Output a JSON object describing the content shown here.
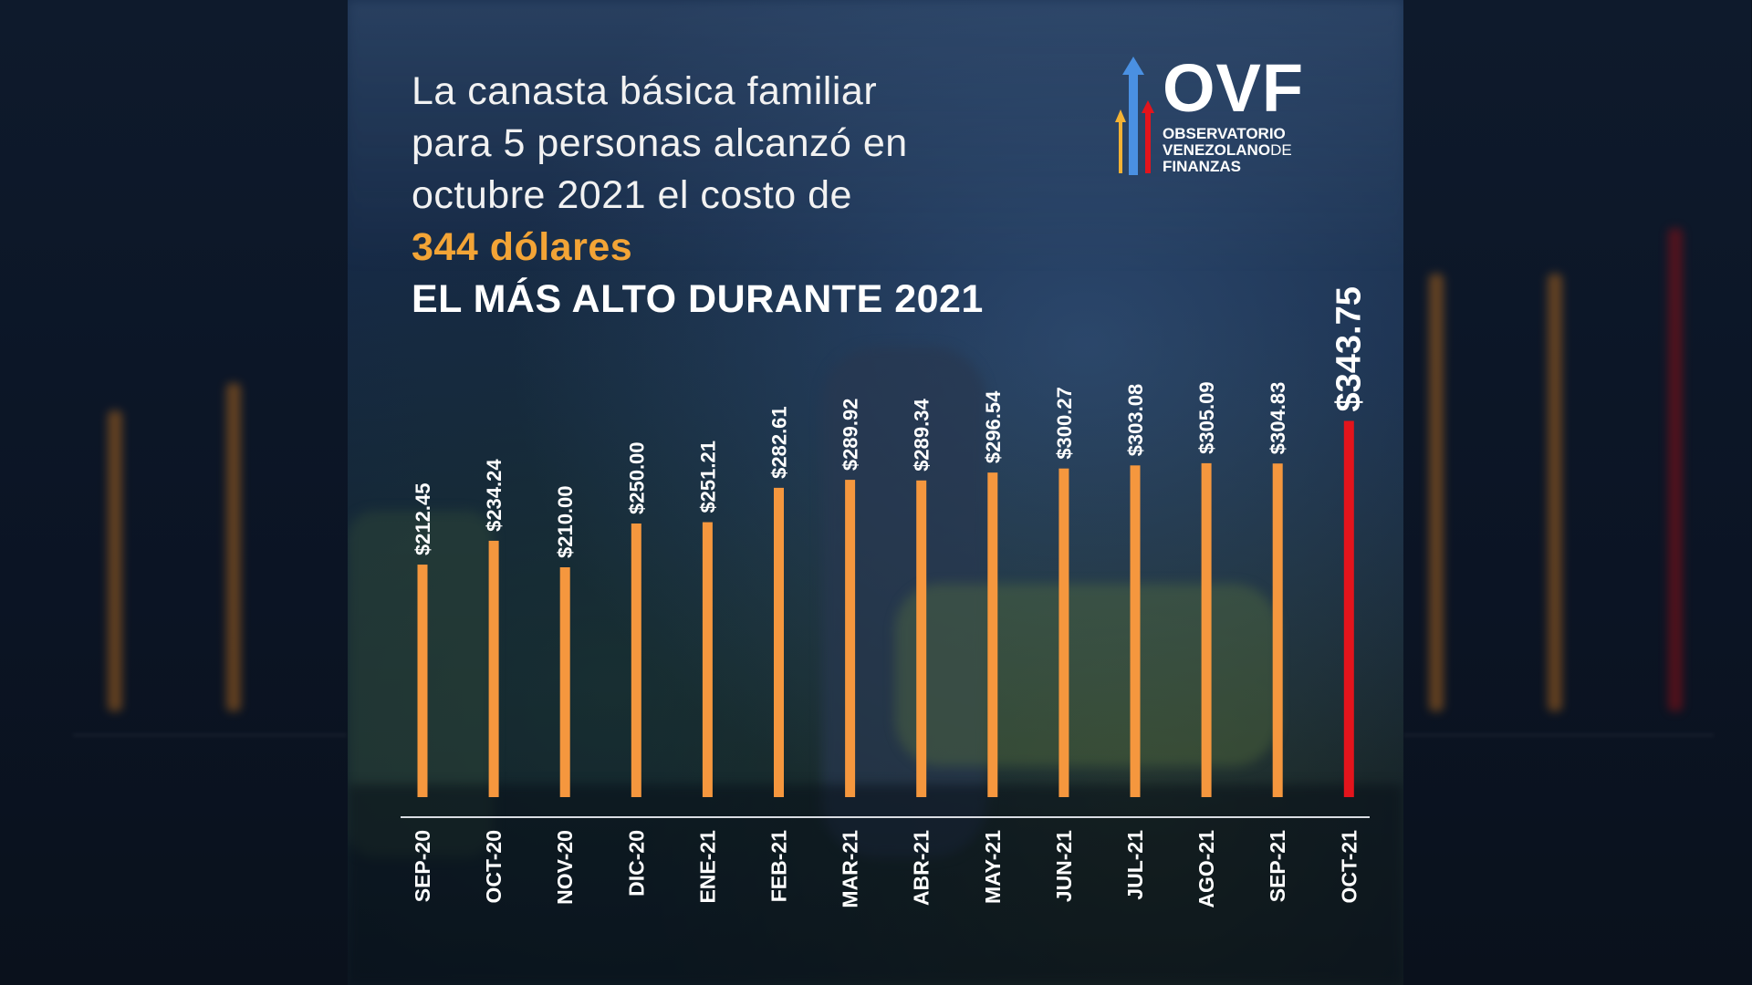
{
  "headline": {
    "line1": "La canasta básica familiar",
    "line2": "para 5 personas  alcanzó en",
    "line3": "octubre 2021 el costo de",
    "highlight": "344 dólares",
    "emphasis": "EL MÁS ALTO DURANTE 2021"
  },
  "logo": {
    "acronym": "OVF",
    "line1": "OBSERVATORIO",
    "line2": "VENEZOLANO",
    "line2_suffix": "DE",
    "line3": "FINANZAS"
  },
  "colors": {
    "bar": "#f5973e",
    "highlight_bar": "#e3141c",
    "highlight_text": "#f3a436",
    "axis": "#d9dde3"
  },
  "chart_data": {
    "type": "bar",
    "categories": [
      "SEP-20",
      "OCT-20",
      "NOV-20",
      "DIC-20",
      "ENE-21",
      "FEB-21",
      "MAR-21",
      "ABR-21",
      "MAY-21",
      "JUN-21",
      "JUL-21",
      "AGO-21",
      "SEP-21",
      "OCT-21"
    ],
    "values": [
      212.45,
      234.24,
      210.0,
      250.0,
      251.21,
      282.61,
      289.92,
      289.34,
      296.54,
      300.27,
      303.08,
      305.09,
      304.83,
      343.75
    ],
    "labels": [
      "$212.45",
      "$234.24",
      "$210.00",
      "$250.00",
      "$251.21",
      "$282.61",
      "$289.92",
      "$289.34",
      "$296.54",
      "$300.27",
      "$303.08",
      "$305.09",
      "$304.83",
      "$343.75"
    ],
    "highlight_index": 13,
    "legend": "none",
    "grid": false
  }
}
